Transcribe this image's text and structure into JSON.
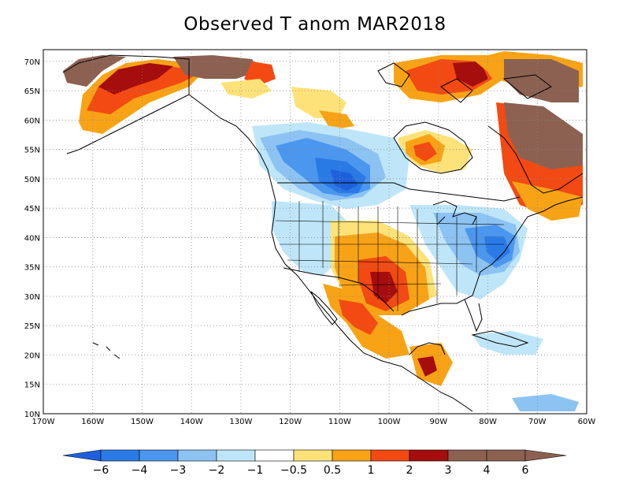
{
  "title": "Observed T anom MAR2018",
  "map": {
    "lon_range": [
      -170,
      -60
    ],
    "lat_range": [
      10,
      72
    ],
    "lon_ticks": [
      "170W",
      "160W",
      "150W",
      "140W",
      "130W",
      "120W",
      "110W",
      "100W",
      "90W",
      "80W",
      "70W",
      "60W"
    ],
    "lat_ticks": [
      "10N",
      "15N",
      "20N",
      "25N",
      "30N",
      "35N",
      "40N",
      "45N",
      "50N",
      "55N",
      "60N",
      "65N",
      "70N"
    ],
    "grid": "dotted"
  },
  "colorbar": {
    "labels": [
      "−6",
      "−4",
      "−3",
      "−2",
      "−1",
      "−0.5",
      "0.5",
      "1",
      "2",
      "3",
      "4",
      "6"
    ],
    "colors": [
      "#1e5fdc",
      "#2a7ae6",
      "#4b96ee",
      "#8cc3f3",
      "#bfe6f8",
      "#ffffff",
      "#fde27a",
      "#f8a316",
      "#f24a12",
      "#a60d0d",
      "#8c6152",
      "#8c6152"
    ]
  }
}
